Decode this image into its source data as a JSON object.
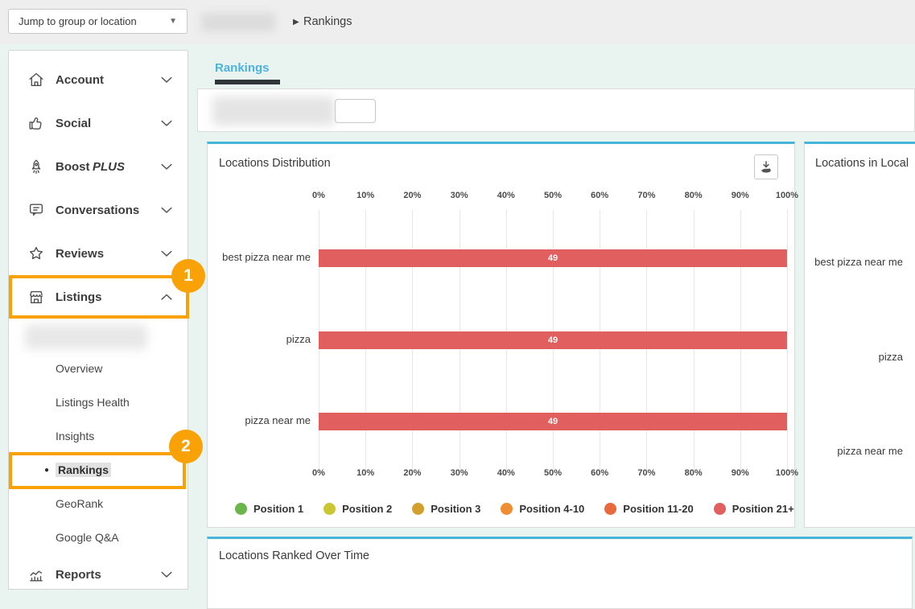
{
  "topbar": {
    "jump_label": "Jump to group or location",
    "caret": "▼",
    "breadcrumb_separator": "▶",
    "breadcrumb_current": "Rankings"
  },
  "sidebar": {
    "sections": [
      {
        "label": "Account",
        "icon": "home-icon",
        "chevron": "down"
      },
      {
        "label": "Social",
        "icon": "thumbs-up-icon",
        "chevron": "down"
      },
      {
        "label": "Boost ",
        "label_suffix": "PLUS",
        "icon": "rocket-icon",
        "chevron": "down"
      },
      {
        "label": "Conversations",
        "icon": "speech-bubble-icon",
        "chevron": "down"
      },
      {
        "label": "Reviews",
        "icon": "star-icon",
        "chevron": "down"
      },
      {
        "label": "Listings",
        "icon": "storefront-icon",
        "chevron": "up",
        "highlighted": true,
        "badge": "1"
      },
      {
        "label": "Reports",
        "icon": "line-chart-icon",
        "chevron": "down"
      }
    ],
    "subitems": [
      {
        "label": "",
        "redacted": true
      },
      {
        "label": "Overview"
      },
      {
        "label": "Listings Health"
      },
      {
        "label": "Insights"
      },
      {
        "label": "Rankings",
        "active": true,
        "bullet": "●",
        "highlighted": true,
        "badge": "2"
      },
      {
        "label": "GeoRank"
      },
      {
        "label": "Google Q&A"
      }
    ]
  },
  "main": {
    "active_tab": "Rankings",
    "panels": {
      "distribution": {
        "title": "Locations Distribution"
      },
      "local": {
        "title": "Locations in Local"
      },
      "over_time": {
        "title": "Locations Ranked Over Time"
      }
    }
  },
  "chart_data": [
    {
      "type": "bar",
      "orientation": "horizontal",
      "title": "Locations Distribution",
      "categories": [
        "best pizza near me",
        "pizza",
        "pizza near me"
      ],
      "series": [
        {
          "name": "Position 21+",
          "color": "#e25f5f",
          "values": [
            49,
            49,
            49
          ],
          "bar_percent": [
            100,
            100,
            100
          ]
        }
      ],
      "value_labels": [
        "49",
        "49",
        "49"
      ],
      "x_axis": {
        "ticks": [
          "0%",
          "10%",
          "20%",
          "30%",
          "40%",
          "50%",
          "60%",
          "70%",
          "80%",
          "90%",
          "100%"
        ],
        "min": 0,
        "max": 100,
        "position": "top-and-bottom"
      },
      "grid": true,
      "legend_position": "bottom",
      "legend": [
        {
          "label": "Position 1",
          "color": "#6cb54d"
        },
        {
          "label": "Position 2",
          "color": "#cbc733"
        },
        {
          "label": "Position 3",
          "color": "#d3a02e"
        },
        {
          "label": "Position 4-10",
          "color": "#ee8d31"
        },
        {
          "label": "Position 11-20",
          "color": "#e8693b"
        },
        {
          "label": "Position 21+",
          "color": "#e25f5f"
        }
      ]
    },
    {
      "type": "bar",
      "orientation": "horizontal",
      "title": "Locations in Local",
      "categories": [
        "best pizza near me",
        "pizza",
        "pizza near me"
      ]
    }
  ],
  "colors": {
    "highlight_orange": "#f9a207",
    "tab_blue": "#4cb2e0",
    "panel_top_border": "#47b4da",
    "bar_red": "#e25f5f",
    "topbar_bg": "#eeeeee",
    "content_bg": "#e9f4f1"
  }
}
